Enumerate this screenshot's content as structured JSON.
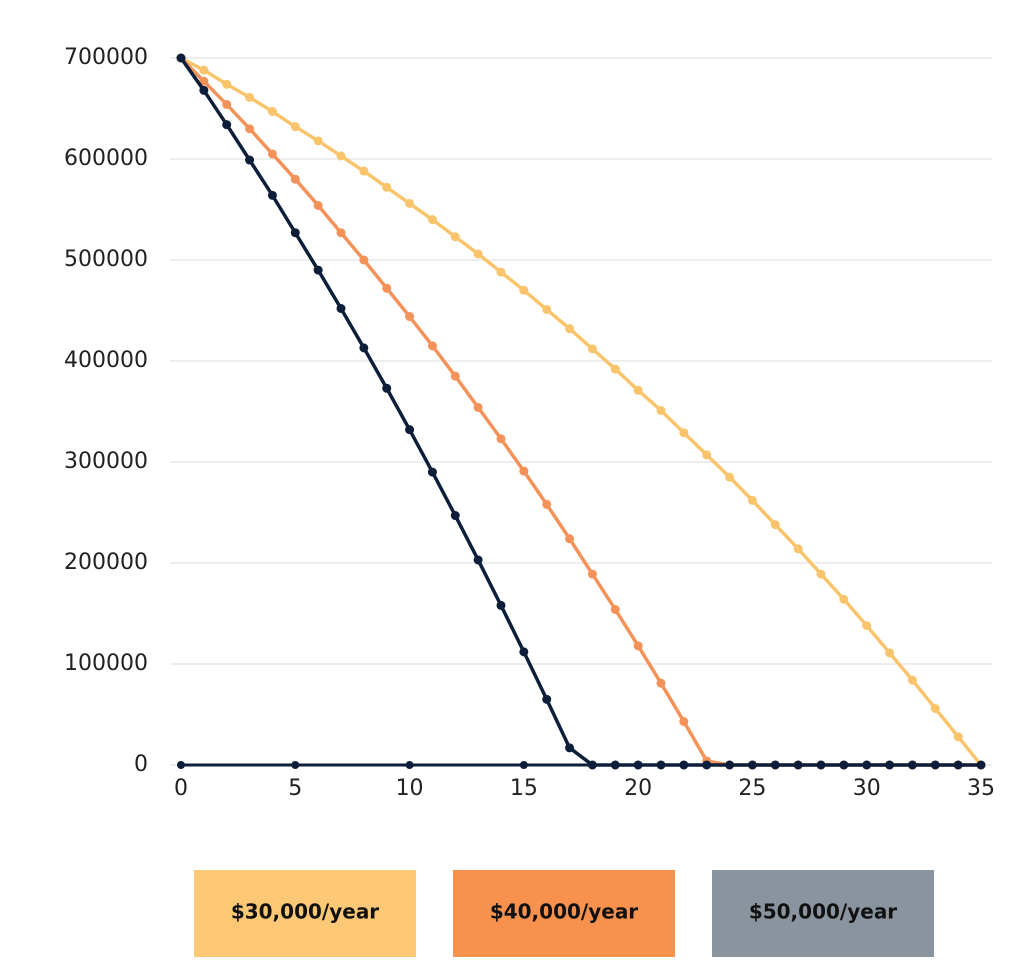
{
  "chart_data": {
    "type": "line",
    "x": [
      0,
      1,
      2,
      3,
      4,
      5,
      6,
      7,
      8,
      9,
      10,
      11,
      12,
      13,
      14,
      15,
      16,
      17,
      18,
      19,
      20,
      21,
      22,
      23,
      24,
      25,
      26,
      27,
      28,
      29,
      30,
      31,
      32,
      33,
      34,
      35
    ],
    "series": [
      {
        "name": "$30,000/year",
        "color": "#f9c46b",
        "legend_color": "#fdc875",
        "values": [
          700000,
          688000,
          674000,
          661000,
          647000,
          632000,
          618000,
          603000,
          588000,
          572000,
          556000,
          540000,
          523000,
          506000,
          488000,
          470000,
          451000,
          432000,
          412000,
          392000,
          371000,
          351000,
          329000,
          307000,
          285000,
          262000,
          238000,
          214000,
          189000,
          164000,
          138000,
          111000,
          84000,
          56000,
          28000,
          0
        ]
      },
      {
        "name": "$40,000/year",
        "color": "#f3935a",
        "legend_color": "#f7914d",
        "values": [
          700000,
          677000,
          654000,
          630000,
          605000,
          580000,
          554000,
          527000,
          500000,
          472000,
          444000,
          415000,
          385000,
          354000,
          323000,
          291000,
          258000,
          224000,
          189000,
          154000,
          118000,
          81000,
          43000,
          4000,
          0,
          0,
          0,
          0,
          0,
          0,
          0,
          0,
          0,
          0,
          0,
          0
        ]
      },
      {
        "name": "$50,000/year",
        "color": "#0c1e3a",
        "legend_color": "#8a949e",
        "values": [
          700000,
          668000,
          634000,
          599000,
          564000,
          527000,
          490000,
          452000,
          413000,
          373000,
          332000,
          290000,
          247000,
          203000,
          158000,
          112000,
          65000,
          17000,
          0,
          0,
          0,
          0,
          0,
          0,
          0,
          0,
          0,
          0,
          0,
          0,
          0,
          0,
          0,
          0,
          0,
          0
        ]
      }
    ],
    "xlim": [
      0,
      35
    ],
    "xticks": [
      0,
      5,
      10,
      15,
      20,
      25,
      30,
      35
    ],
    "ylim": [
      0,
      700000
    ],
    "yticks": [
      0,
      100000,
      200000,
      300000,
      400000,
      500000,
      600000,
      700000
    ],
    "grid": true,
    "legend": "bottom"
  }
}
